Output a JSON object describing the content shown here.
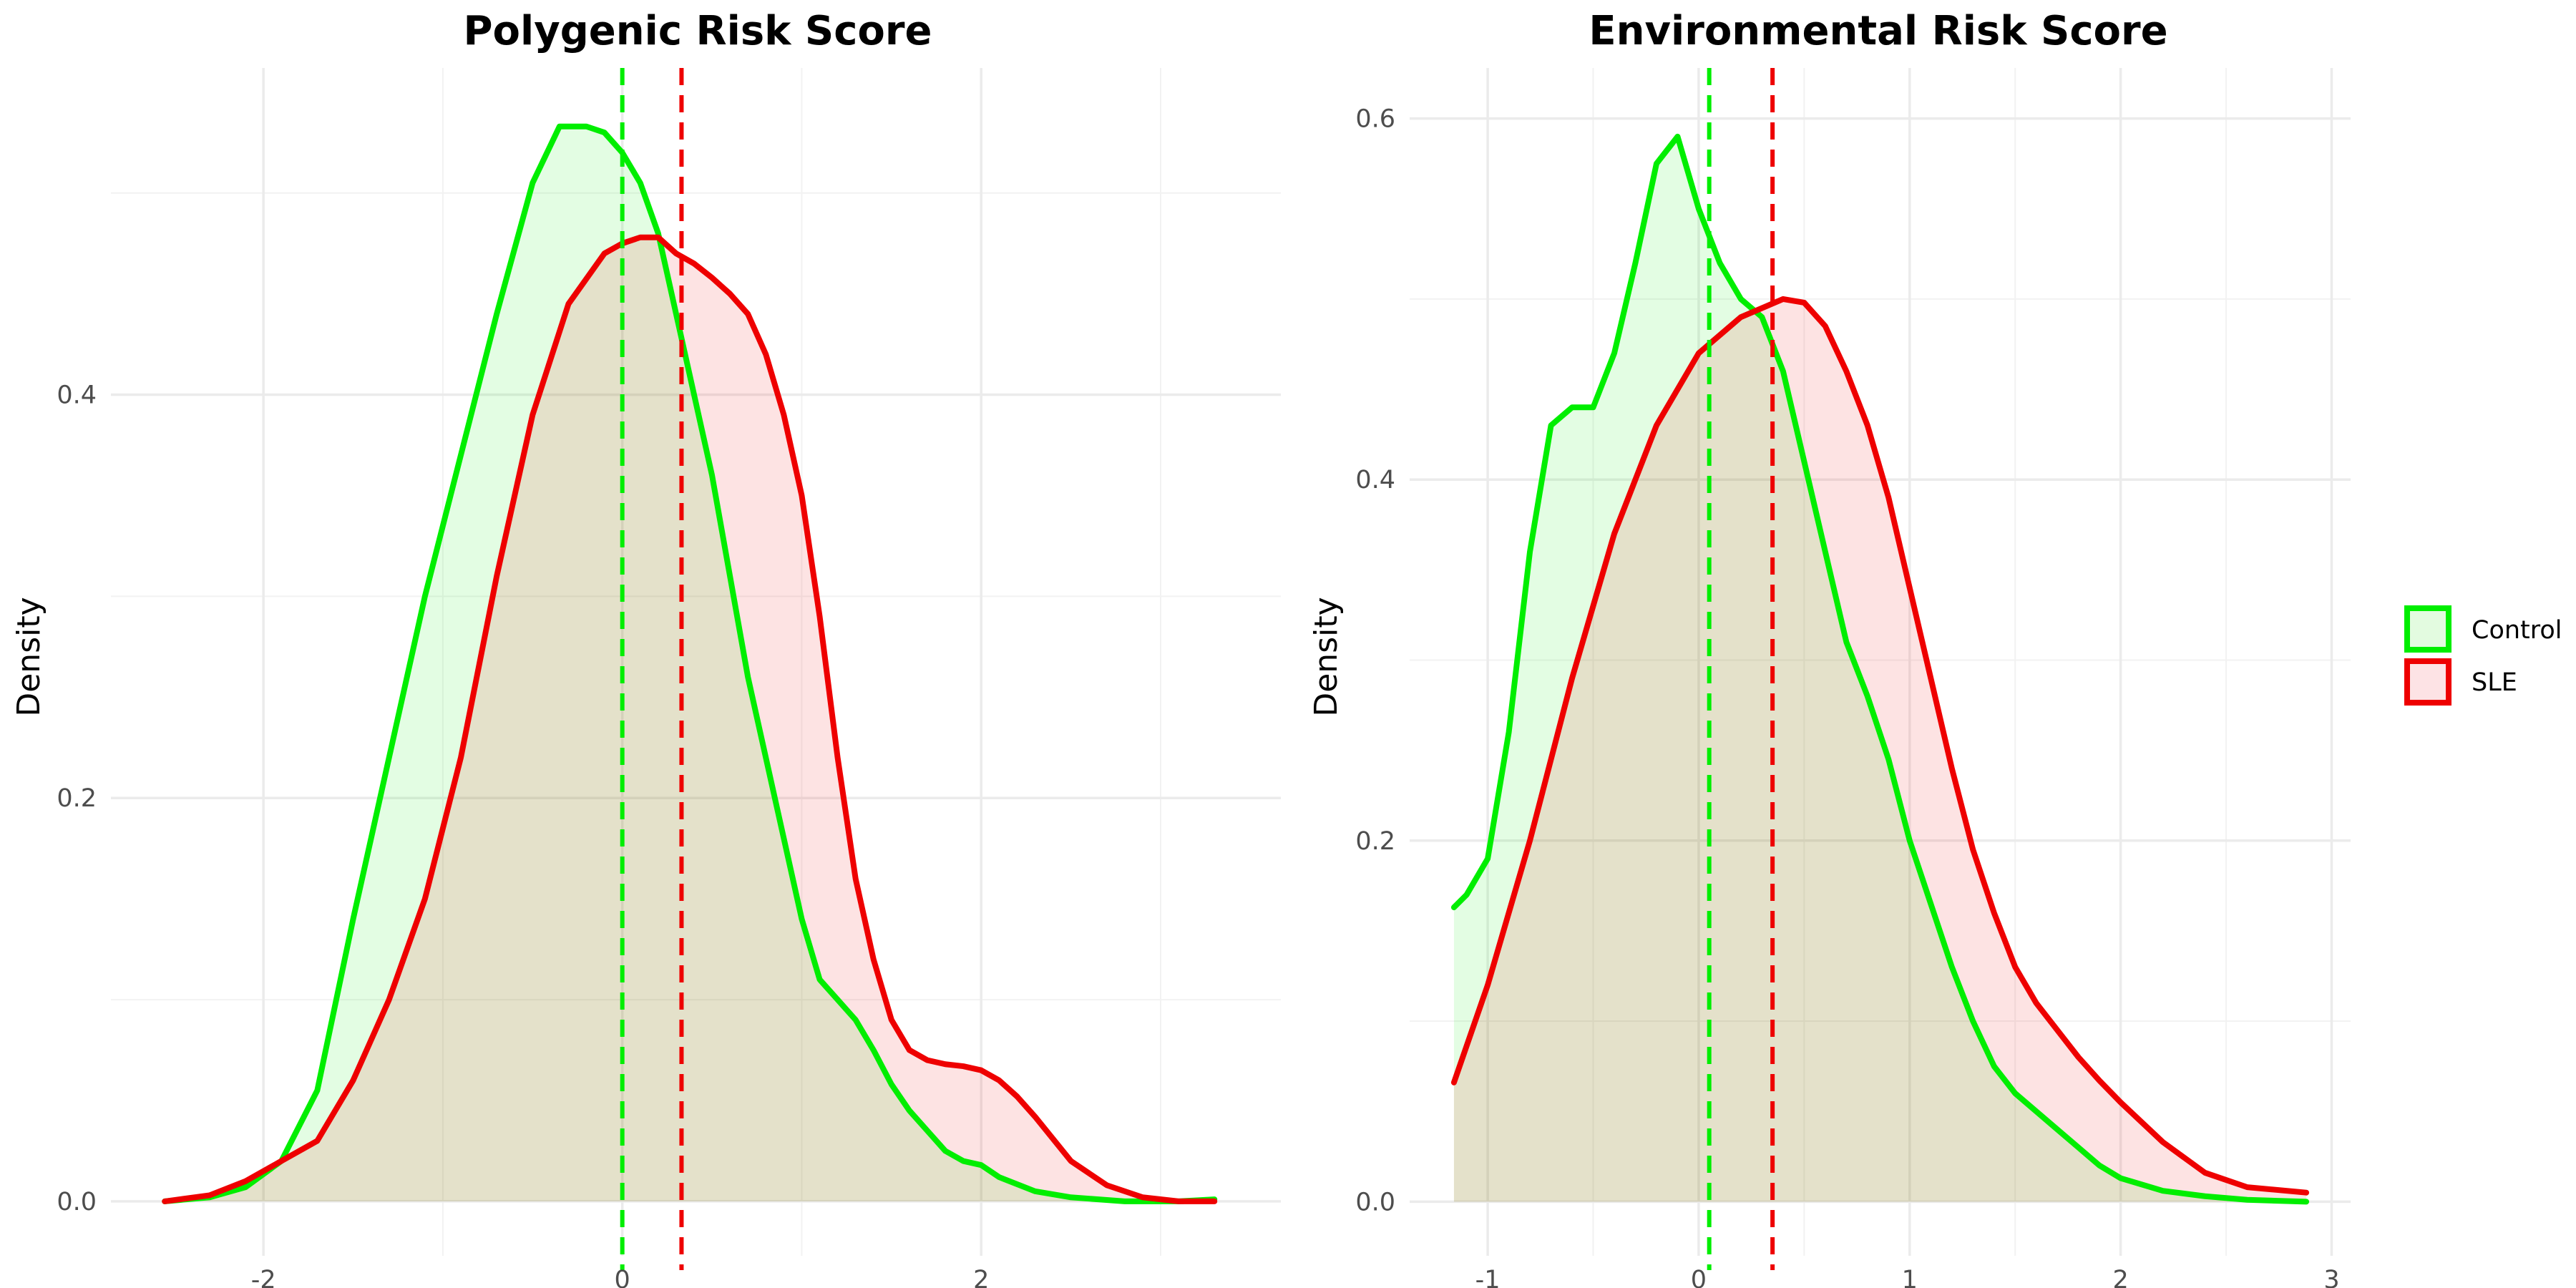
{
  "legend": {
    "position": "right",
    "entries": [
      {
        "label": "Control",
        "color": "#00ee00",
        "fill": "#e3fbe0"
      },
      {
        "label": "SLE",
        "color": "#ee0000",
        "fill": "#fde3e5"
      }
    ]
  },
  "chart_data": [
    {
      "type": "area",
      "title": "Polygenic Risk Score",
      "xlabel": "",
      "ylabel": "Density",
      "xlim": [
        -2.85,
        3.67
      ],
      "ylim": [
        -0.027,
        0.562
      ],
      "x_major_ticks": [
        -2,
        0,
        2
      ],
      "x_minor_ticks": [
        -1,
        1,
        3
      ],
      "y_major_ticks": [
        0.0,
        0.2,
        0.4
      ],
      "y_minor_ticks": [
        0.1,
        0.3,
        0.5
      ],
      "tick_labels_x": [
        "-2",
        "0",
        "2"
      ],
      "tick_labels_y": [
        "0.0",
        "0.2",
        "0.4"
      ],
      "grid": true,
      "series": [
        {
          "name": "Control",
          "color": "#00ee00",
          "fill": "#e3fbe0",
          "mean": 0.0,
          "x": [
            -2.55,
            -2.3,
            -2.1,
            -1.9,
            -1.7,
            -1.5,
            -1.3,
            -1.1,
            -0.9,
            -0.7,
            -0.5,
            -0.35,
            -0.2,
            -0.1,
            0.0,
            0.1,
            0.2,
            0.3,
            0.4,
            0.5,
            0.6,
            0.7,
            0.8,
            0.9,
            1.0,
            1.1,
            1.2,
            1.3,
            1.4,
            1.5,
            1.6,
            1.7,
            1.8,
            1.9,
            2.0,
            2.1,
            2.3,
            2.5,
            2.8,
            3.1,
            3.3
          ],
          "y": [
            0.0,
            0.002,
            0.007,
            0.02,
            0.055,
            0.14,
            0.22,
            0.3,
            0.37,
            0.44,
            0.505,
            0.533,
            0.533,
            0.53,
            0.52,
            0.505,
            0.48,
            0.44,
            0.4,
            0.36,
            0.31,
            0.26,
            0.22,
            0.18,
            0.14,
            0.11,
            0.1,
            0.09,
            0.075,
            0.058,
            0.045,
            0.035,
            0.025,
            0.02,
            0.018,
            0.012,
            0.005,
            0.002,
            0.0,
            0.0,
            0.001
          ]
        },
        {
          "name": "SLE",
          "color": "#ee0000",
          "fill": "#fde3e5",
          "mean": 0.33,
          "x": [
            -2.55,
            -2.3,
            -2.1,
            -1.9,
            -1.7,
            -1.5,
            -1.3,
            -1.1,
            -0.9,
            -0.7,
            -0.5,
            -0.3,
            -0.1,
            0.0,
            0.1,
            0.2,
            0.3,
            0.4,
            0.5,
            0.6,
            0.7,
            0.8,
            0.9,
            1.0,
            1.1,
            1.2,
            1.3,
            1.4,
            1.5,
            1.6,
            1.7,
            1.8,
            1.9,
            2.0,
            2.1,
            2.2,
            2.3,
            2.5,
            2.7,
            2.9,
            3.1,
            3.3
          ],
          "y": [
            0.0,
            0.003,
            0.01,
            0.02,
            0.03,
            0.06,
            0.1,
            0.15,
            0.22,
            0.31,
            0.39,
            0.445,
            0.47,
            0.475,
            0.478,
            0.478,
            0.47,
            0.465,
            0.458,
            0.45,
            0.44,
            0.42,
            0.39,
            0.35,
            0.29,
            0.22,
            0.16,
            0.12,
            0.09,
            0.075,
            0.07,
            0.068,
            0.067,
            0.065,
            0.06,
            0.052,
            0.042,
            0.02,
            0.008,
            0.002,
            0.0,
            0.0
          ]
        }
      ]
    },
    {
      "type": "area",
      "title": "Environmental Risk Score",
      "xlabel": "",
      "ylabel": "Density",
      "xlim": [
        -1.37,
        3.09
      ],
      "ylim": [
        -0.03,
        0.628
      ],
      "x_major_ticks": [
        -1,
        0,
        1,
        2,
        3
      ],
      "x_minor_ticks": [
        -0.5,
        0.5,
        1.5,
        2.5
      ],
      "y_major_ticks": [
        0.0,
        0.2,
        0.4,
        0.6
      ],
      "y_minor_ticks": [
        0.1,
        0.3,
        0.5
      ],
      "tick_labels_x": [
        "-1",
        "0",
        "1",
        "2",
        "3"
      ],
      "tick_labels_y": [
        "0.0",
        "0.2",
        "0.4",
        "0.6"
      ],
      "grid": true,
      "series": [
        {
          "name": "Control",
          "color": "#00ee00",
          "fill": "#e3fbe0",
          "mean": 0.05,
          "x": [
            -1.16,
            -1.1,
            -1.0,
            -0.9,
            -0.8,
            -0.7,
            -0.6,
            -0.5,
            -0.4,
            -0.3,
            -0.2,
            -0.1,
            0.0,
            0.1,
            0.2,
            0.3,
            0.4,
            0.5,
            0.6,
            0.7,
            0.8,
            0.9,
            1.0,
            1.1,
            1.2,
            1.3,
            1.4,
            1.5,
            1.6,
            1.7,
            1.8,
            1.9,
            2.0,
            2.2,
            2.4,
            2.6,
            2.88
          ],
          "y": [
            0.163,
            0.17,
            0.19,
            0.26,
            0.36,
            0.43,
            0.44,
            0.44,
            0.47,
            0.52,
            0.575,
            0.59,
            0.55,
            0.52,
            0.5,
            0.49,
            0.46,
            0.41,
            0.36,
            0.31,
            0.28,
            0.245,
            0.2,
            0.165,
            0.13,
            0.1,
            0.075,
            0.06,
            0.05,
            0.04,
            0.03,
            0.02,
            0.013,
            0.006,
            0.003,
            0.001,
            0.0
          ]
        },
        {
          "name": "SLE",
          "color": "#ee0000",
          "fill": "#fde3e5",
          "mean": 0.35,
          "x": [
            -1.16,
            -1.0,
            -0.8,
            -0.6,
            -0.4,
            -0.2,
            0.0,
            0.2,
            0.4,
            0.5,
            0.6,
            0.7,
            0.8,
            0.9,
            1.0,
            1.1,
            1.2,
            1.3,
            1.4,
            1.5,
            1.6,
            1.7,
            1.8,
            1.9,
            2.0,
            2.2,
            2.4,
            2.6,
            2.88
          ],
          "y": [
            0.066,
            0.12,
            0.2,
            0.29,
            0.37,
            0.43,
            0.47,
            0.49,
            0.5,
            0.498,
            0.485,
            0.46,
            0.43,
            0.39,
            0.34,
            0.29,
            0.24,
            0.195,
            0.16,
            0.13,
            0.11,
            0.095,
            0.08,
            0.067,
            0.055,
            0.033,
            0.016,
            0.008,
            0.005
          ]
        }
      ]
    }
  ]
}
